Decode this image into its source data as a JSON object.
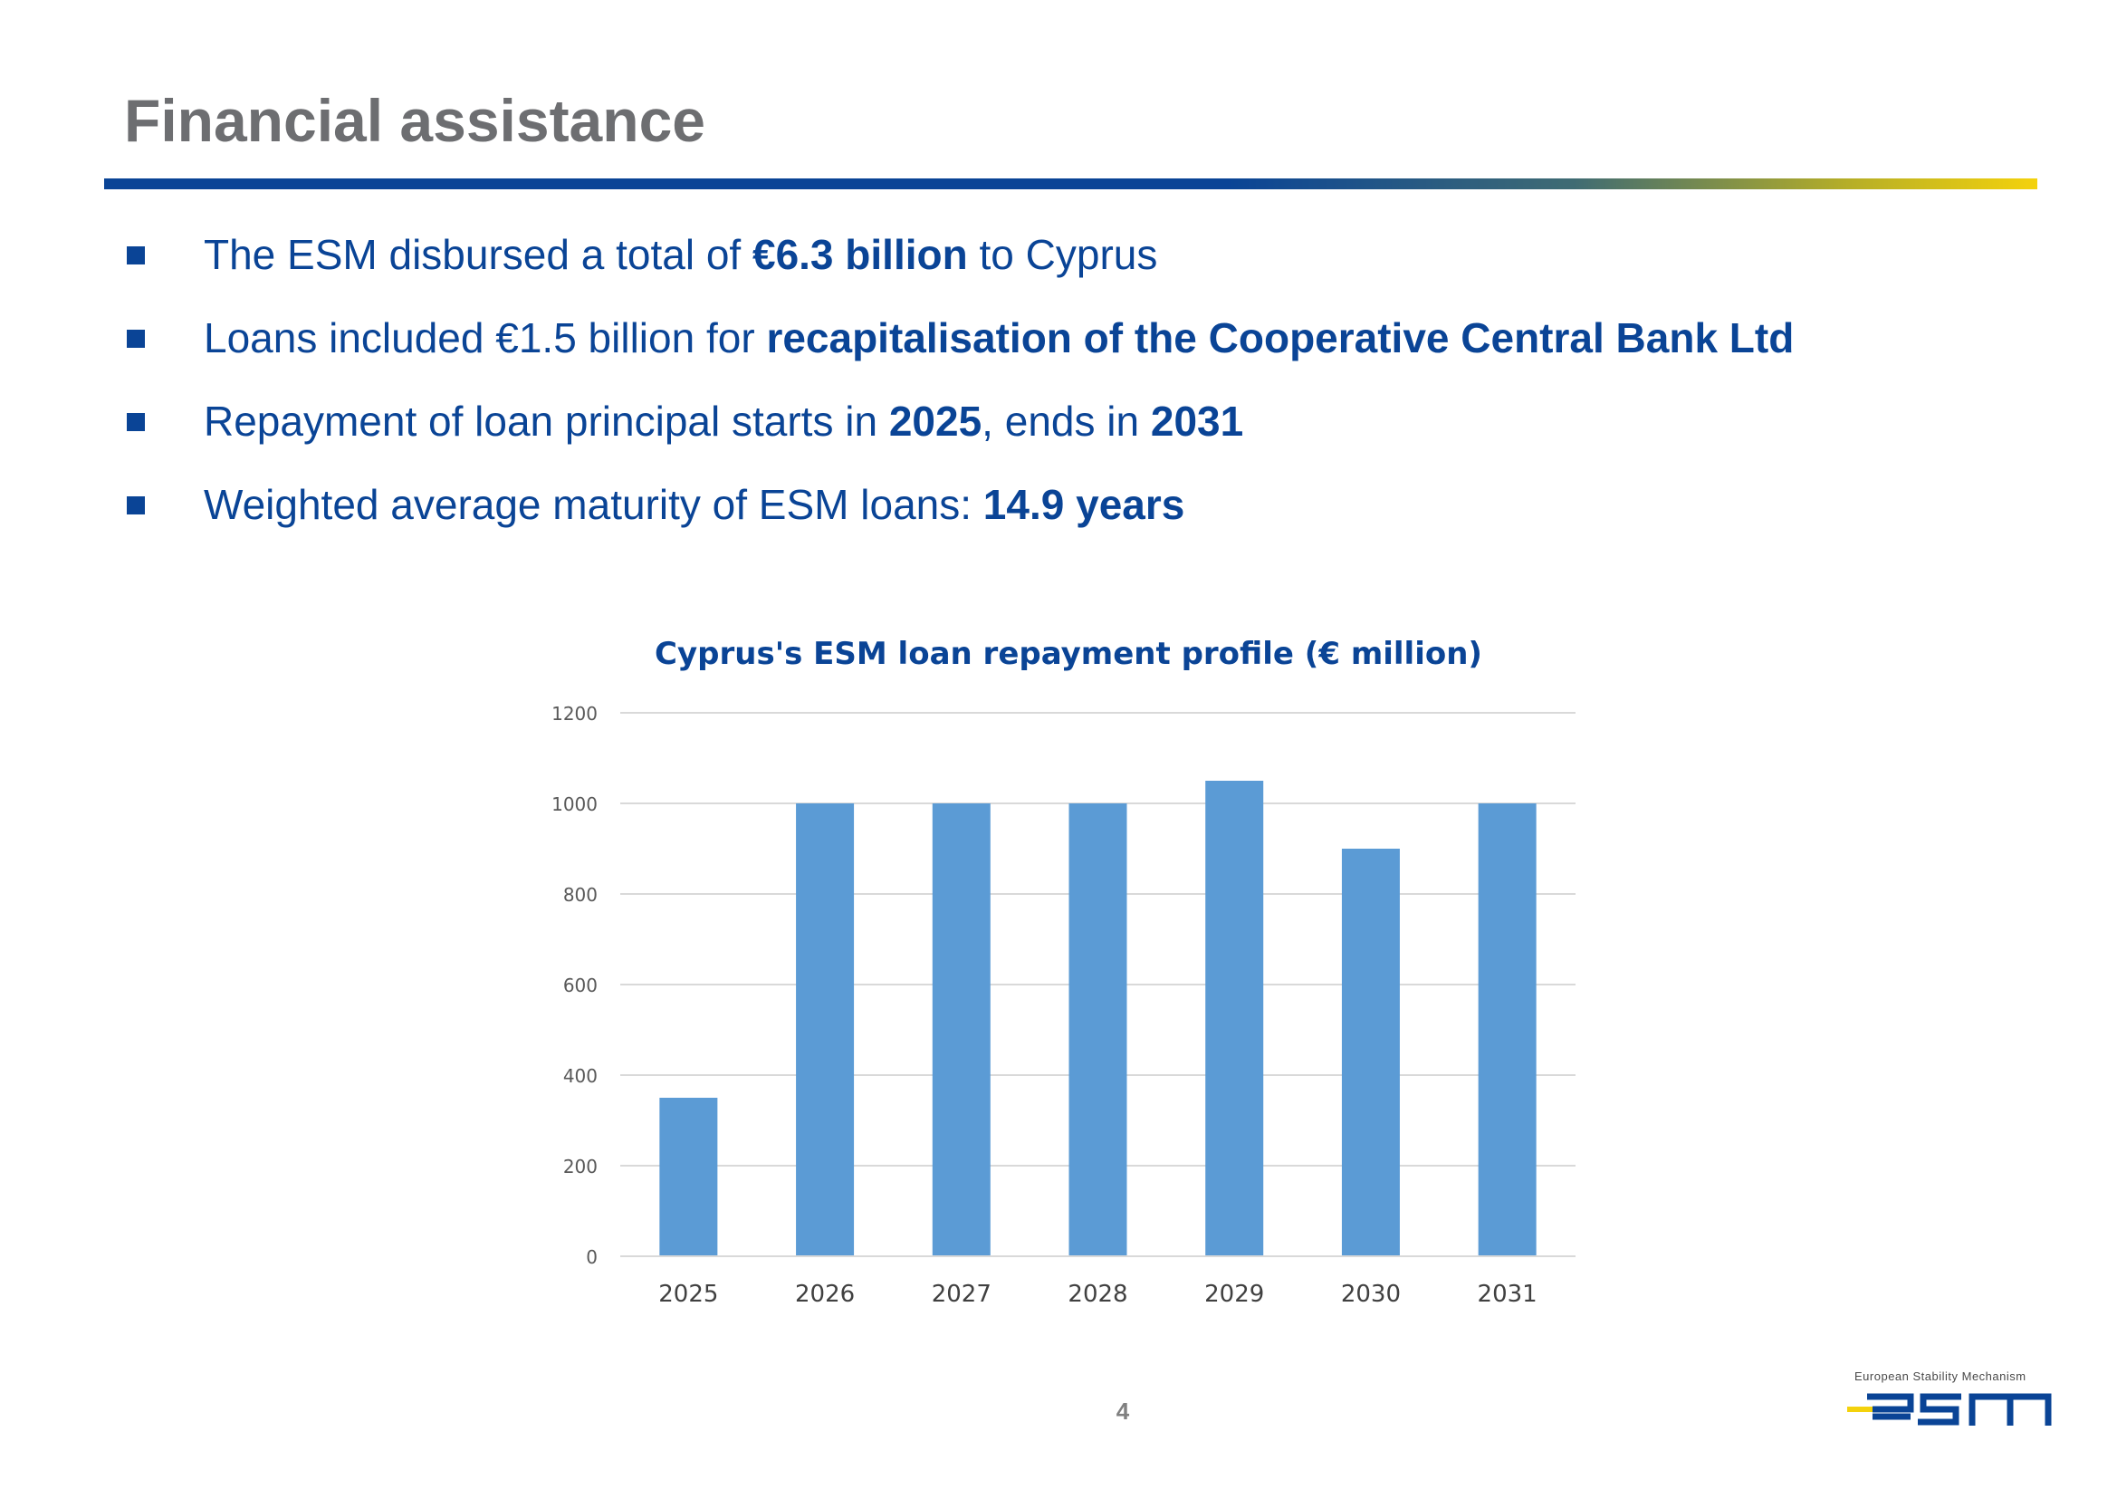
{
  "slide": {
    "title": "Financial assistance",
    "page_number": "4"
  },
  "bullets": [
    {
      "parts": [
        {
          "text": "The ESM disbursed a total of ",
          "bold": false
        },
        {
          "text": "€6.3 billion",
          "bold": true
        },
        {
          "text": " to Cyprus",
          "bold": false
        }
      ]
    },
    {
      "parts": [
        {
          "text": "Loans included €1.5 billion for ",
          "bold": false
        },
        {
          "text": "recapitalisation of the Cooperative Central Bank Ltd",
          "bold": true
        }
      ]
    },
    {
      "parts": [
        {
          "text": "Repayment of loan principal starts in ",
          "bold": false
        },
        {
          "text": "2025",
          "bold": true
        },
        {
          "text": ", ends in ",
          "bold": false
        },
        {
          "text": "2031",
          "bold": true
        }
      ]
    },
    {
      "parts": [
        {
          "text": "Weighted average maturity of ESM loans: ",
          "bold": false
        },
        {
          "text": "14.9 years",
          "bold": true
        }
      ]
    }
  ],
  "chart_data": {
    "type": "bar",
    "title": "Cyprus's ESM loan repayment profile (€ million)",
    "categories": [
      "2025",
      "2026",
      "2027",
      "2028",
      "2029",
      "2030",
      "2031"
    ],
    "values": [
      350,
      1000,
      1000,
      1000,
      1050,
      900,
      1000
    ],
    "ylim": [
      0,
      1200
    ],
    "yticks": [
      0,
      200,
      400,
      600,
      800,
      1000,
      1200
    ],
    "xlabel": "",
    "ylabel": "",
    "grid": true,
    "bar_color": "#5b9bd5"
  },
  "logo": {
    "tagline": "European Stability Mechanism",
    "wordmark": "esm"
  },
  "colors": {
    "brand_blue": "#0a4496",
    "accent_yellow": "#f4d20c",
    "title_grey": "#6d6e71"
  }
}
